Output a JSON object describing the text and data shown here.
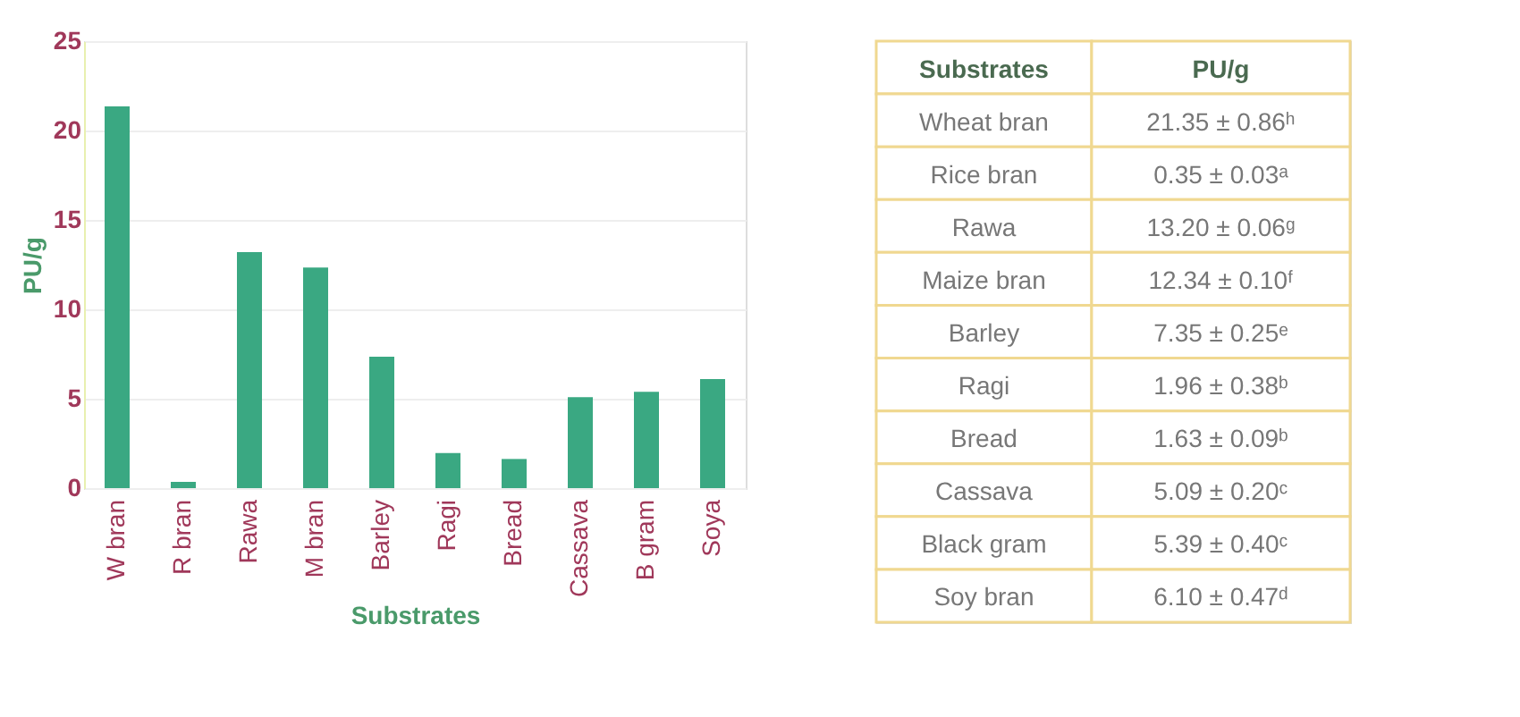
{
  "chart_data": [
    {
      "type": "bar",
      "categories": [
        "W bran",
        "R bran",
        "Rawa",
        "M bran",
        "Barley",
        "Ragi",
        "Bread",
        "Cassava",
        "B gram",
        "Soya"
      ],
      "values": [
        21.35,
        0.35,
        13.2,
        12.34,
        7.35,
        1.96,
        1.63,
        5.09,
        5.39,
        6.1
      ],
      "color": "#3aa882",
      "xlabel": "Substrates",
      "ylabel": "PU/g",
      "ylim": [
        0,
        25
      ],
      "yticks": [
        0,
        5,
        10,
        15,
        20,
        25
      ],
      "grid": "y"
    },
    {
      "type": "other",
      "annotations": [
        "Substrates",
        "PU/g"
      ],
      "categories": [
        "Wheat bran",
        "Rice bran",
        "Rawa",
        "Maize bran",
        "Barley",
        "Ragi",
        "Bread",
        "Cassava",
        "Black gram",
        "Soy bran"
      ],
      "value_labels": [
        "21.35 ± 0.86ʰ",
        "0.35 ± 0.03ᵃ",
        "13.20 ± 0.06ᵍ",
        "12.34 ± 0.10ᶠ",
        "7.35 ± 0.25ᵉ",
        "1.96 ± 0.38ᵇ",
        "1.63 ± 0.09ᵇ",
        "5.09 ± 0.20ᶜ",
        "5.39 ± 0.40ᶜ",
        "6.10 ± 0.47ᵈ"
      ]
    }
  ]
}
